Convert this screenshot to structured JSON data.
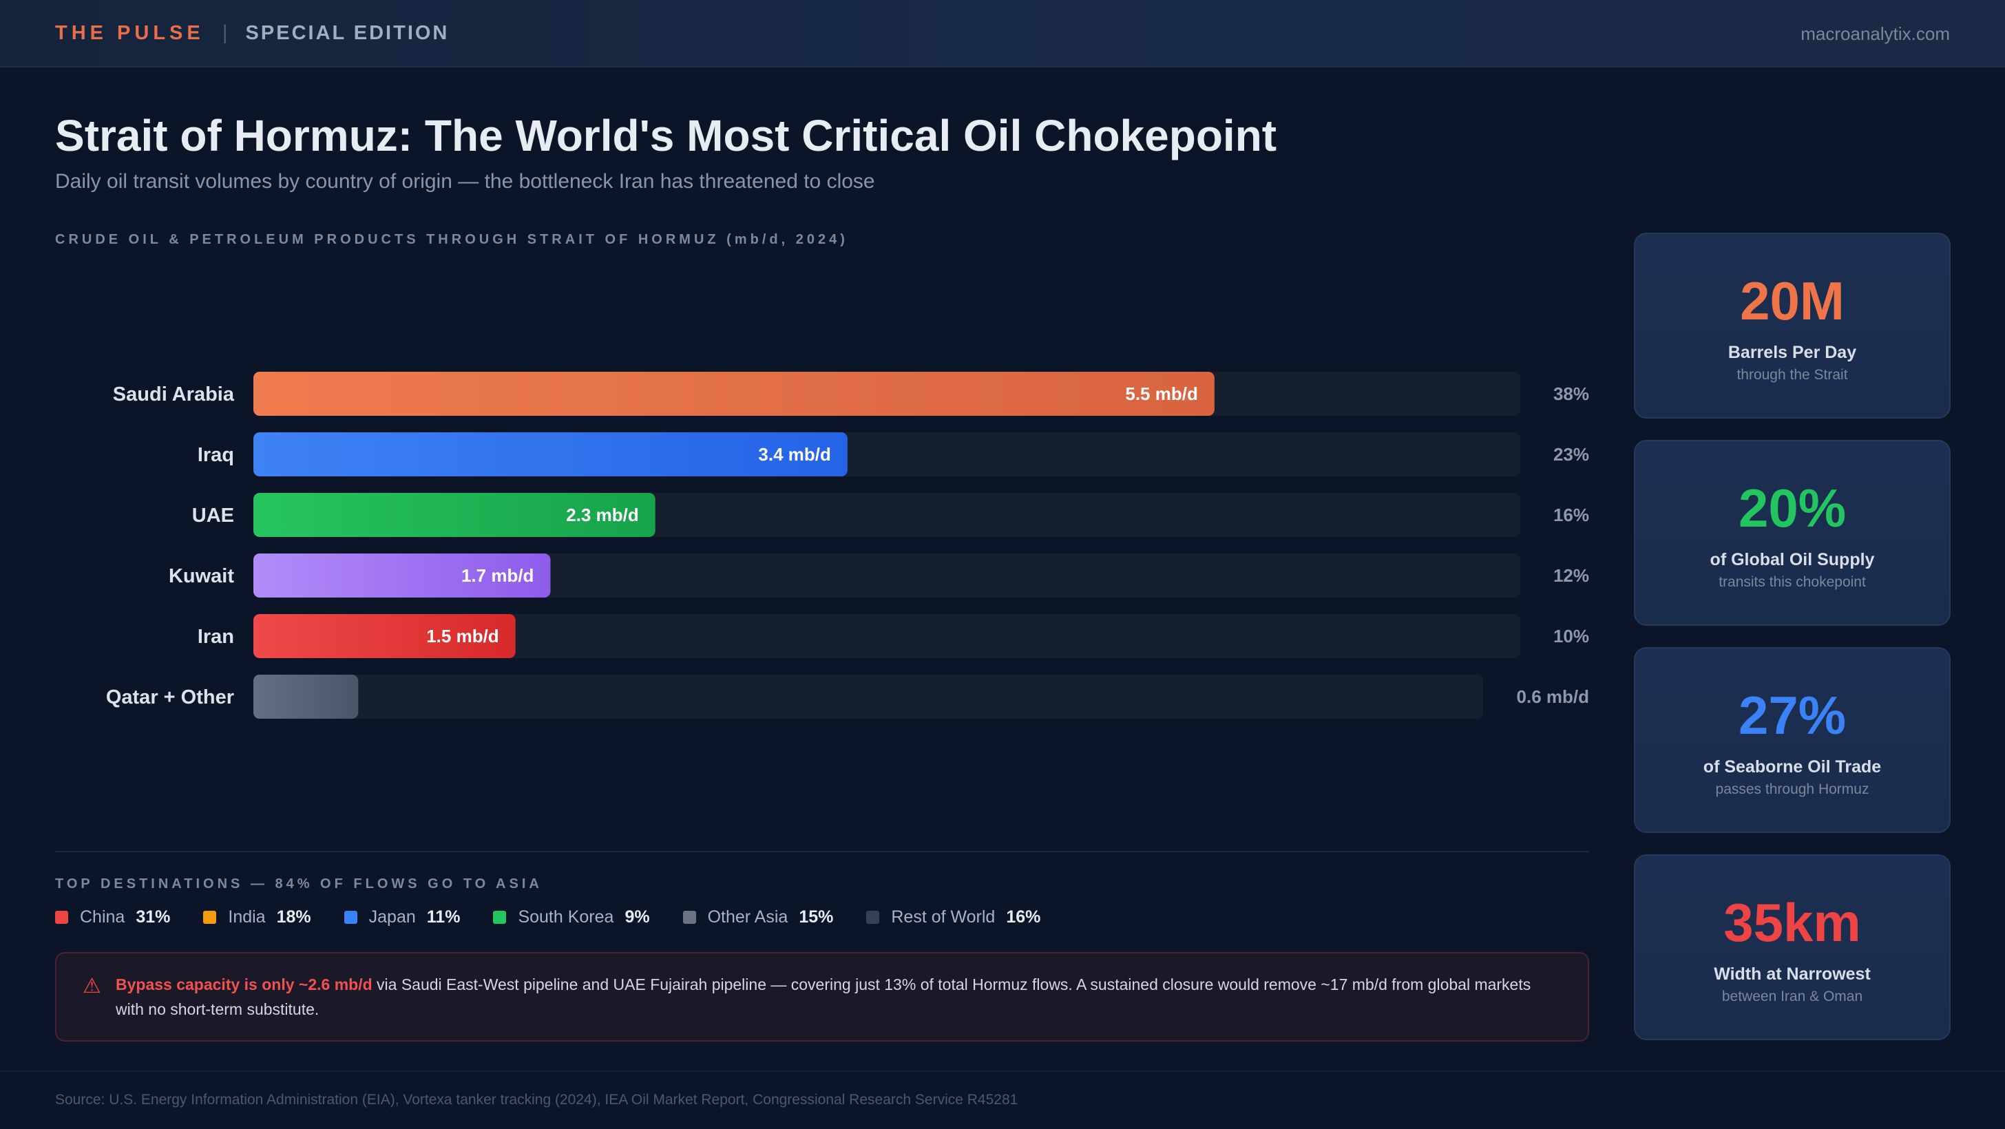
{
  "header": {
    "brand": "THE PULSE",
    "separator": "|",
    "edition": "SPECIAL EDITION",
    "site": "macroanalytix.com"
  },
  "title": "Strait of Hormuz: The World's Most Critical Oil Chokepoint",
  "subtitle": "Daily oil transit volumes by country of origin — the bottleneck Iran has threatened to close",
  "chart_section_label": "CRUDE OIL & PETROLEUM PRODUCTS THROUGH STRAIT OF HORMUZ (mb/d, 2024)",
  "chart_data": {
    "type": "bar",
    "orientation": "horizontal",
    "title": "CRUDE OIL & PETROLEUM PRODUCTS THROUGH STRAIT OF HORMUZ (mb/d, 2024)",
    "unit": "mb/d",
    "categories": [
      "Saudi Arabia",
      "Iraq",
      "UAE",
      "Kuwait",
      "Iran",
      "Qatar + Other"
    ],
    "values": [
      5.5,
      3.4,
      2.3,
      1.7,
      1.5,
      0.6
    ],
    "value_labels": [
      "5.5 mb/d",
      "3.4 mb/d",
      "2.3 mb/d",
      "1.7 mb/d",
      "1.5 mb/d",
      ""
    ],
    "right_labels": [
      "38%",
      "23%",
      "16%",
      "12%",
      "10%",
      "0.6 mb/d"
    ],
    "xlim": [
      0,
      7.25
    ],
    "colors": [
      [
        "#ee7c4f",
        "#d7643f"
      ],
      [
        "#3f82f4",
        "#2463e6"
      ],
      [
        "#27c45f",
        "#17a34a"
      ],
      [
        "#b08df8",
        "#8f5ceb"
      ],
      [
        "#ef4949",
        "#d72a2a"
      ],
      [
        "#646f82",
        "#4b5568"
      ]
    ],
    "track_color": "#161f2e",
    "grid": false,
    "legend": "none"
  },
  "destinations": {
    "label": "TOP DESTINATIONS — 84% OF FLOWS GO TO ASIA",
    "items": [
      {
        "name": "China",
        "value": "31%",
        "color": "#ef4444"
      },
      {
        "name": "India",
        "value": "18%",
        "color": "#f59e0b"
      },
      {
        "name": "Japan",
        "value": "11%",
        "color": "#3b82f6"
      },
      {
        "name": "South Korea",
        "value": "9%",
        "color": "#22c55e"
      },
      {
        "name": "Other Asia",
        "value": "15%",
        "color": "#6b7280"
      },
      {
        "name": "Rest of World",
        "value": "16%",
        "color": "#374151"
      }
    ]
  },
  "alert": {
    "icon": "warning-icon",
    "strong": "Bypass capacity is only ~2.6 mb/d",
    "text": " via Saudi East-West pipeline and UAE Fujairah pipeline — covering just 13% of total Hormuz flows. A sustained closure would remove ~17 mb/d from global markets with no short-term substitute."
  },
  "stats": [
    {
      "value": "20M",
      "label": "Barrels Per Day",
      "sub": "through the Strait",
      "color": "#ef7449"
    },
    {
      "value": "20%",
      "label": "of Global Oil Supply",
      "sub": "transits this chokepoint",
      "color": "#22c55e"
    },
    {
      "value": "27%",
      "label": "of Seaborne Oil Trade",
      "sub": "passes through Hormuz",
      "color": "#3b82f6"
    },
    {
      "value": "35km",
      "label": "Width at Narrowest",
      "sub": "between Iran & Oman",
      "color": "#ef4444"
    }
  ],
  "source": "Source: U.S. Energy Information Administration (EIA), Vortexa tanker tracking (2024), IEA Oil Market Report, Congressional Research Service R45281"
}
